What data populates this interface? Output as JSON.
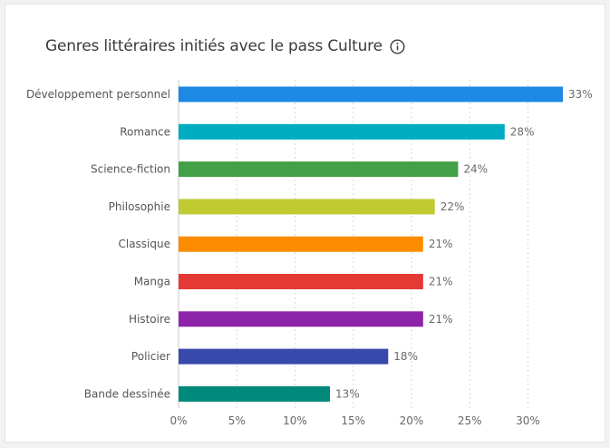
{
  "title": "Genres littéraires initiés avec le pass Culture",
  "icons": {
    "info": "info-icon"
  },
  "chart_data": {
    "type": "bar",
    "orientation": "horizontal",
    "title": "Genres littéraires initiés avec le pass Culture",
    "xlabel": "",
    "ylabel": "",
    "xlim": [
      0,
      33
    ],
    "grid": true,
    "categories": [
      "Développement personnel",
      "Romance",
      "Science-fiction",
      "Philosophie",
      "Classique",
      "Manga",
      "Histoire",
      "Policier",
      "Bande dessinée"
    ],
    "values": [
      33,
      28,
      24,
      22,
      21,
      21,
      21,
      18,
      13
    ],
    "value_labels": [
      "33%",
      "28%",
      "24%",
      "22%",
      "21%",
      "21%",
      "21%",
      "18%",
      "13%"
    ],
    "colors": [
      "#1e88e5",
      "#00acc1",
      "#43a047",
      "#c0ca33",
      "#fb8c00",
      "#e53935",
      "#8e24aa",
      "#3949ab",
      "#00897b"
    ],
    "ticks": [
      0,
      5,
      10,
      15,
      20,
      25,
      30
    ],
    "tick_labels": [
      "0%",
      "5%",
      "10%",
      "15%",
      "20%",
      "25%",
      "30%"
    ]
  }
}
